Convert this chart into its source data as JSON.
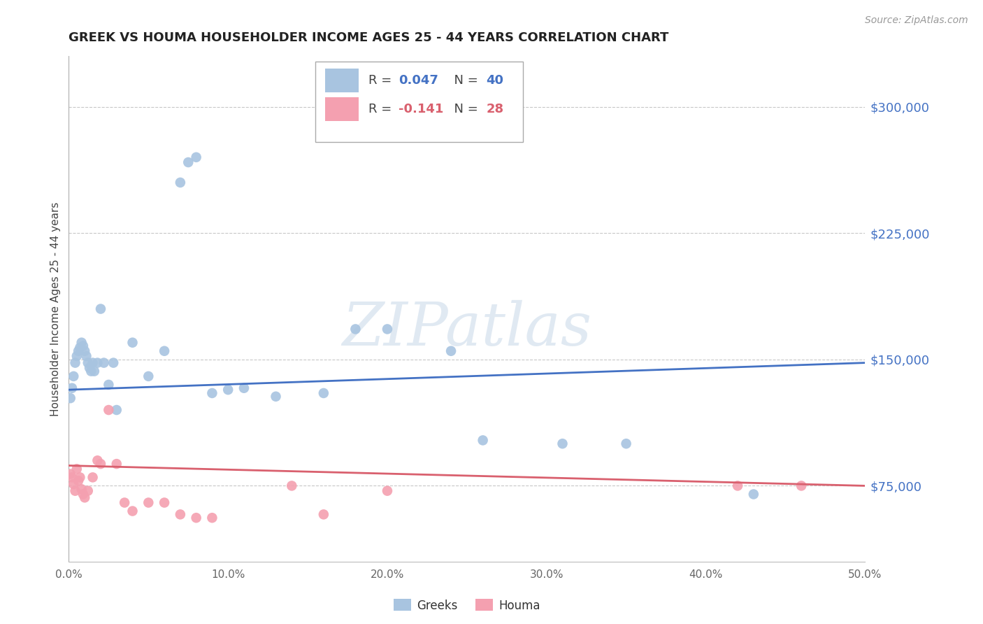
{
  "title": "GREEK VS HOUMA HOUSEHOLDER INCOME AGES 25 - 44 YEARS CORRELATION CHART",
  "source": "Source: ZipAtlas.com",
  "ylabel": "Householder Income Ages 25 - 44 years",
  "xlim": [
    0.0,
    50.0
  ],
  "ylim": [
    30000,
    330000
  ],
  "yticks": [
    75000,
    150000,
    225000,
    300000
  ],
  "ytick_labels": [
    "$75,000",
    "$150,000",
    "$225,000",
    "$300,000"
  ],
  "xticks": [
    0.0,
    10.0,
    20.0,
    30.0,
    40.0,
    50.0
  ],
  "xtick_labels": [
    "0.0%",
    "10.0%",
    "20.0%",
    "30.0%",
    "40.0%",
    "50.0%"
  ],
  "greek_color": "#a8c4e0",
  "houma_color": "#f4a0b0",
  "greek_line_color": "#4472c4",
  "houma_line_color": "#d9606e",
  "legend_r_greek": "R = 0.047",
  "legend_n_greek": "N = 40",
  "legend_r_houma": "R = -0.141",
  "legend_n_houma": "N = 28",
  "watermark": "ZIPatlas",
  "background_color": "#ffffff",
  "grid_color": "#c8c8c8",
  "greek_line_x": [
    0.0,
    50.0
  ],
  "greek_line_y": [
    132000,
    148000
  ],
  "houma_line_x": [
    0.0,
    50.0
  ],
  "houma_line_y": [
    87000,
    75000
  ],
  "greek_x": [
    0.1,
    0.2,
    0.3,
    0.4,
    0.5,
    0.6,
    0.7,
    0.8,
    0.9,
    1.0,
    1.1,
    1.2,
    1.3,
    1.4,
    1.5,
    1.6,
    1.8,
    2.0,
    2.2,
    2.5,
    2.8,
    3.0,
    4.0,
    5.0,
    6.0,
    7.0,
    7.5,
    8.0,
    9.0,
    10.0,
    11.0,
    13.0,
    16.0,
    18.0,
    20.0,
    24.0,
    26.0,
    31.0,
    35.0,
    43.0
  ],
  "greek_y": [
    127000,
    133000,
    140000,
    148000,
    152000,
    155000,
    157000,
    160000,
    158000,
    155000,
    152000,
    148000,
    145000,
    143000,
    148000,
    143000,
    148000,
    180000,
    148000,
    135000,
    148000,
    120000,
    160000,
    140000,
    155000,
    255000,
    267000,
    270000,
    130000,
    132000,
    133000,
    128000,
    130000,
    168000,
    168000,
    155000,
    102000,
    100000,
    100000,
    70000
  ],
  "houma_x": [
    0.1,
    0.2,
    0.3,
    0.4,
    0.5,
    0.6,
    0.7,
    0.8,
    0.9,
    1.0,
    1.2,
    1.5,
    1.8,
    2.0,
    2.5,
    3.0,
    3.5,
    4.0,
    5.0,
    6.0,
    7.0,
    8.0,
    9.0,
    14.0,
    16.0,
    42.0,
    46.0,
    20.0
  ],
  "houma_y": [
    82000,
    80000,
    76000,
    72000,
    85000,
    78000,
    80000,
    73000,
    70000,
    68000,
    72000,
    80000,
    90000,
    88000,
    120000,
    88000,
    65000,
    60000,
    65000,
    65000,
    58000,
    56000,
    56000,
    75000,
    58000,
    75000,
    75000,
    72000
  ]
}
